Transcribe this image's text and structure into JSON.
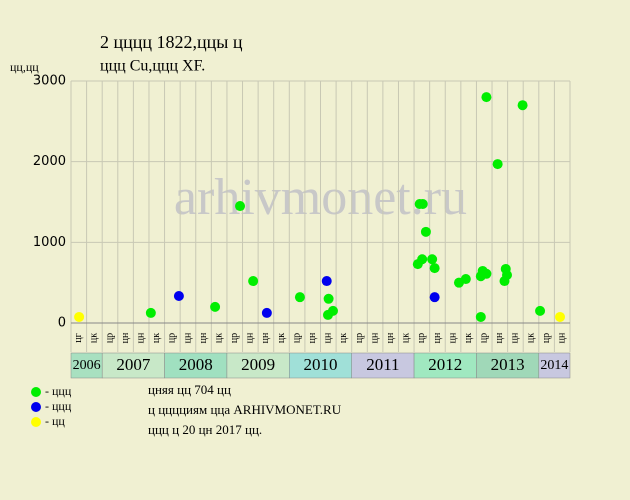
{
  "chart_data": {
    "type": "scatter",
    "title": "2 цццц 1822,ццы ц",
    "subtitle": "ццц Cu,ццц XF.",
    "ylabel": "цц,цц",
    "watermark": "arhivmonet.ru",
    "xlim": [
      2006.5,
      2014.5
    ],
    "ylim": [
      0,
      3000
    ],
    "yticks": [
      0,
      1000,
      2000,
      3000
    ],
    "grid": true,
    "quarter_labels": [
      "цг",
      "цк",
      "цр",
      "цн",
      "цн",
      "цк",
      "цр",
      "цн",
      "цн",
      "цк",
      "цр",
      "цн",
      "цн",
      "цк",
      "цр",
      "цн",
      "цн",
      "цк",
      "цр",
      "цн",
      "цн",
      "цк",
      "цр",
      "цн",
      "цн",
      "цк",
      "цр",
      "цн",
      "цн",
      "цк",
      "цр",
      "цн"
    ],
    "years": [
      {
        "label": "2006",
        "color": "#a8e0c0"
      },
      {
        "label": "2007",
        "color": "#c8e8c8"
      },
      {
        "label": "2008",
        "color": "#a0e0c0"
      },
      {
        "label": "2009",
        "color": "#c8e8c8"
      },
      {
        "label": "2010",
        "color": "#a0e0d8"
      },
      {
        "label": "2011",
        "color": "#c8c8e0"
      },
      {
        "label": "2012",
        "color": "#a0e8c0"
      },
      {
        "label": "2013",
        "color": "#a0d8b8"
      },
      {
        "label": "2014",
        "color": "#c8c8e0"
      }
    ],
    "series": [
      {
        "name": "- ццц",
        "color": "#00ee00",
        "x": [
          2007.78,
          2008.81,
          2009.21,
          2009.42,
          2010.17,
          2010.63,
          2010.62,
          2010.7,
          2012.06,
          2012.13,
          2012.09,
          2012.14,
          2012.19,
          2012.29,
          2012.33,
          2012.72,
          2012.83,
          2013.07,
          2013.07,
          2013.1,
          2013.16,
          2013.16,
          2013.34,
          2013.45,
          2013.47,
          2013.49,
          2013.74,
          2014.02
        ],
        "values": [
          125,
          200,
          1450,
          520,
          320,
          300,
          100,
          150,
          730,
          790,
          1475,
          1475,
          1130,
          790,
          680,
          500,
          545,
          75,
          580,
          645,
          610,
          2800,
          1970,
          520,
          670,
          595,
          2700,
          150
        ]
      },
      {
        "name": "- ццц",
        "color": "#0000ee",
        "x": [
          2008.23,
          2009.64,
          2010.6,
          2012.33
        ],
        "values": [
          335,
          125,
          520,
          320
        ]
      },
      {
        "name": "- цц",
        "color": "#ffff00",
        "x": [
          2006.63,
          2014.34
        ],
        "values": [
          75,
          75
        ]
      }
    ],
    "notes": [
      "цняя цц 704 цц",
      "ц цццциям цца ARHIVMONET.RU",
      "ццц ц 20 цн 2017 цц."
    ]
  }
}
